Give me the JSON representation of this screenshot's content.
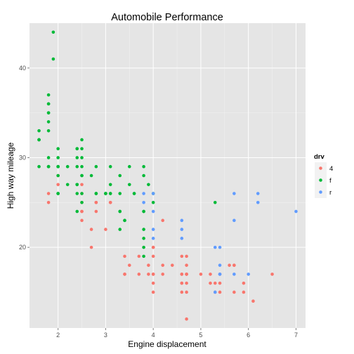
{
  "chart_data": {
    "type": "scatter",
    "title": "Automobile Performance",
    "xlabel": "Engine displacement",
    "ylabel": "High way mileage",
    "xlim": [
      1.4,
      7.2
    ],
    "ylim": [
      11,
      45
    ],
    "xticks": [
      "2",
      "3",
      "4",
      "5",
      "6",
      "7"
    ],
    "yticks": [
      "20",
      "30",
      "40"
    ],
    "grid": true,
    "legend": {
      "title": "drv",
      "position": "right"
    },
    "series": [
      {
        "name": "4",
        "color": "#F8766D",
        "points": [
          [
            1.8,
            26
          ],
          [
            1.8,
            25
          ],
          [
            2.0,
            28
          ],
          [
            2.0,
            27
          ],
          [
            2.8,
            25
          ],
          [
            2.8,
            25
          ],
          [
            3.1,
            25
          ],
          [
            3.1,
            25
          ],
          [
            2.5,
            27
          ],
          [
            2.5,
            25
          ],
          [
            2.5,
            26
          ],
          [
            2.5,
            24
          ],
          [
            2.5,
            24
          ],
          [
            2.5,
            23
          ],
          [
            2.7,
            22
          ],
          [
            2.7,
            20
          ],
          [
            2.8,
            24
          ],
          [
            3.0,
            22
          ],
          [
            3.4,
            19
          ],
          [
            3.4,
            17
          ],
          [
            3.4,
            17
          ],
          [
            3.5,
            18
          ],
          [
            3.7,
            17
          ],
          [
            3.7,
            19
          ],
          [
            3.9,
            17
          ],
          [
            3.9,
            18
          ],
          [
            4.0,
            17
          ],
          [
            4.0,
            19
          ],
          [
            4.0,
            20
          ],
          [
            4.0,
            17
          ],
          [
            4.0,
            16
          ],
          [
            4.0,
            15
          ],
          [
            4.0,
            20
          ],
          [
            4.2,
            23
          ],
          [
            4.2,
            18
          ],
          [
            4.2,
            17
          ],
          [
            4.4,
            18
          ],
          [
            4.6,
            17
          ],
          [
            4.6,
            16
          ],
          [
            4.6,
            17
          ],
          [
            4.6,
            19
          ],
          [
            4.6,
            15
          ],
          [
            4.6,
            16
          ],
          [
            4.7,
            17
          ],
          [
            4.7,
            12
          ],
          [
            4.7,
            17
          ],
          [
            4.7,
            19
          ],
          [
            4.7,
            15
          ],
          [
            4.7,
            16
          ],
          [
            4.7,
            17
          ],
          [
            4.7,
            18
          ],
          [
            5.0,
            17
          ],
          [
            5.2,
            17
          ],
          [
            5.2,
            16
          ],
          [
            5.3,
            15
          ],
          [
            5.3,
            16
          ],
          [
            5.4,
            16
          ],
          [
            5.4,
            17
          ],
          [
            5.4,
            15
          ],
          [
            5.6,
            18
          ],
          [
            5.7,
            18
          ],
          [
            5.7,
            18
          ],
          [
            5.7,
            15
          ],
          [
            5.9,
            15
          ],
          [
            6.1,
            14
          ],
          [
            6.5,
            17
          ],
          [
            5.9,
            16
          ]
        ]
      },
      {
        "name": "f",
        "color": "#00BA38",
        "points": [
          [
            1.8,
            29
          ],
          [
            1.8,
            29
          ],
          [
            2.0,
            31
          ],
          [
            2.0,
            30
          ],
          [
            2.8,
            26
          ],
          [
            2.8,
            26
          ],
          [
            3.1,
            27
          ],
          [
            2.4,
            30
          ],
          [
            2.4,
            27
          ],
          [
            3.1,
            26
          ],
          [
            3.5,
            29
          ],
          [
            3.6,
            26
          ],
          [
            2.4,
            24
          ],
          [
            3.0,
            26
          ],
          [
            3.3,
            28
          ],
          [
            3.3,
            26
          ],
          [
            3.3,
            24
          ],
          [
            3.3,
            24
          ],
          [
            3.3,
            22
          ],
          [
            3.8,
            24
          ],
          [
            3.8,
            24
          ],
          [
            3.8,
            22
          ],
          [
            3.8,
            19
          ],
          [
            4.0,
            25
          ],
          [
            5.3,
            25
          ],
          [
            1.6,
            33
          ],
          [
            1.6,
            32
          ],
          [
            1.6,
            32
          ],
          [
            1.6,
            29
          ],
          [
            1.6,
            32
          ],
          [
            1.8,
            34
          ],
          [
            1.8,
            36
          ],
          [
            1.8,
            36
          ],
          [
            2.0,
            29
          ],
          [
            2.4,
            26
          ],
          [
            2.4,
            27
          ],
          [
            2.5,
            30
          ],
          [
            2.5,
            31
          ],
          [
            2.5,
            26
          ],
          [
            2.5,
            32
          ],
          [
            2.2,
            27
          ],
          [
            2.2,
            29
          ],
          [
            2.4,
            31
          ],
          [
            2.4,
            31
          ],
          [
            3.0,
            26
          ],
          [
            3.0,
            26
          ],
          [
            3.5,
            27
          ],
          [
            1.8,
            30
          ],
          [
            1.8,
            33
          ],
          [
            1.8,
            35
          ],
          [
            1.8,
            37
          ],
          [
            1.8,
            35
          ],
          [
            1.8,
            29
          ],
          [
            1.9,
            44
          ],
          [
            1.9,
            41
          ],
          [
            2.0,
            29
          ],
          [
            2.0,
            26
          ],
          [
            2.5,
            28
          ],
          [
            2.5,
            29
          ],
          [
            2.8,
            29
          ],
          [
            2.0,
            28
          ],
          [
            2.0,
            29
          ],
          [
            2.0,
            26
          ],
          [
            2.0,
            26
          ],
          [
            2.7,
            28
          ],
          [
            3.0,
            26
          ],
          [
            3.1,
            29
          ],
          [
            3.8,
            29
          ],
          [
            3.8,
            28
          ],
          [
            3.9,
            27
          ],
          [
            4.0,
            26
          ],
          [
            3.8,
            21
          ],
          [
            3.8,
            20
          ],
          [
            3.4,
            23
          ],
          [
            3.6,
            26
          ],
          [
            2.4,
            29
          ],
          [
            2.5,
            28
          ],
          [
            2.5,
            25
          ],
          [
            3.1,
            26
          ],
          [
            3.4,
            23
          ],
          [
            2.4,
            27
          ],
          [
            2.8,
            26
          ]
        ]
      },
      {
        "name": "r",
        "color": "#619CFF",
        "points": [
          [
            5.7,
            26
          ],
          [
            5.7,
            23
          ],
          [
            6.2,
            26
          ],
          [
            6.2,
            25
          ],
          [
            7.0,
            24
          ],
          [
            5.3,
            20
          ],
          [
            5.3,
            15
          ],
          [
            5.7,
            17
          ],
          [
            6.0,
            17
          ],
          [
            5.4,
            18
          ],
          [
            5.4,
            17
          ],
          [
            5.4,
            20
          ],
          [
            3.8,
            26
          ],
          [
            3.8,
            25
          ],
          [
            4.0,
            26
          ],
          [
            4.0,
            24
          ],
          [
            4.0,
            21
          ],
          [
            4.0,
            22
          ],
          [
            4.6,
            23
          ],
          [
            4.6,
            22
          ],
          [
            4.6,
            21
          ],
          [
            5.4,
            17
          ]
        ]
      }
    ]
  }
}
